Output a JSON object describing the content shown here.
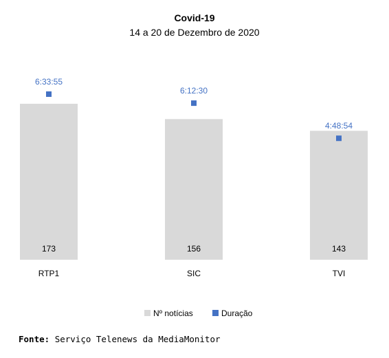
{
  "chart_data": {
    "type": "bar",
    "title": "Covid-19",
    "subtitle": "14 a 20 de Dezembro de 2020",
    "categories": [
      "RTP1",
      "SIC",
      "TVI"
    ],
    "series": [
      {
        "name": "Nº notícias",
        "type": "bar",
        "values": [
          173,
          156,
          143
        ],
        "color": "#d9d9d9"
      },
      {
        "name": "Duração",
        "type": "marker",
        "values": [
          "6:33:55",
          "6:12:30",
          "4:48:54"
        ],
        "seconds": [
          23635,
          22350,
          17334
        ],
        "color": "#4472c4"
      }
    ],
    "legend_position": "bottom",
    "grid": false
  },
  "source": {
    "label": "Fonte:",
    "text": "Serviço Telenews da MediaMonitor"
  }
}
